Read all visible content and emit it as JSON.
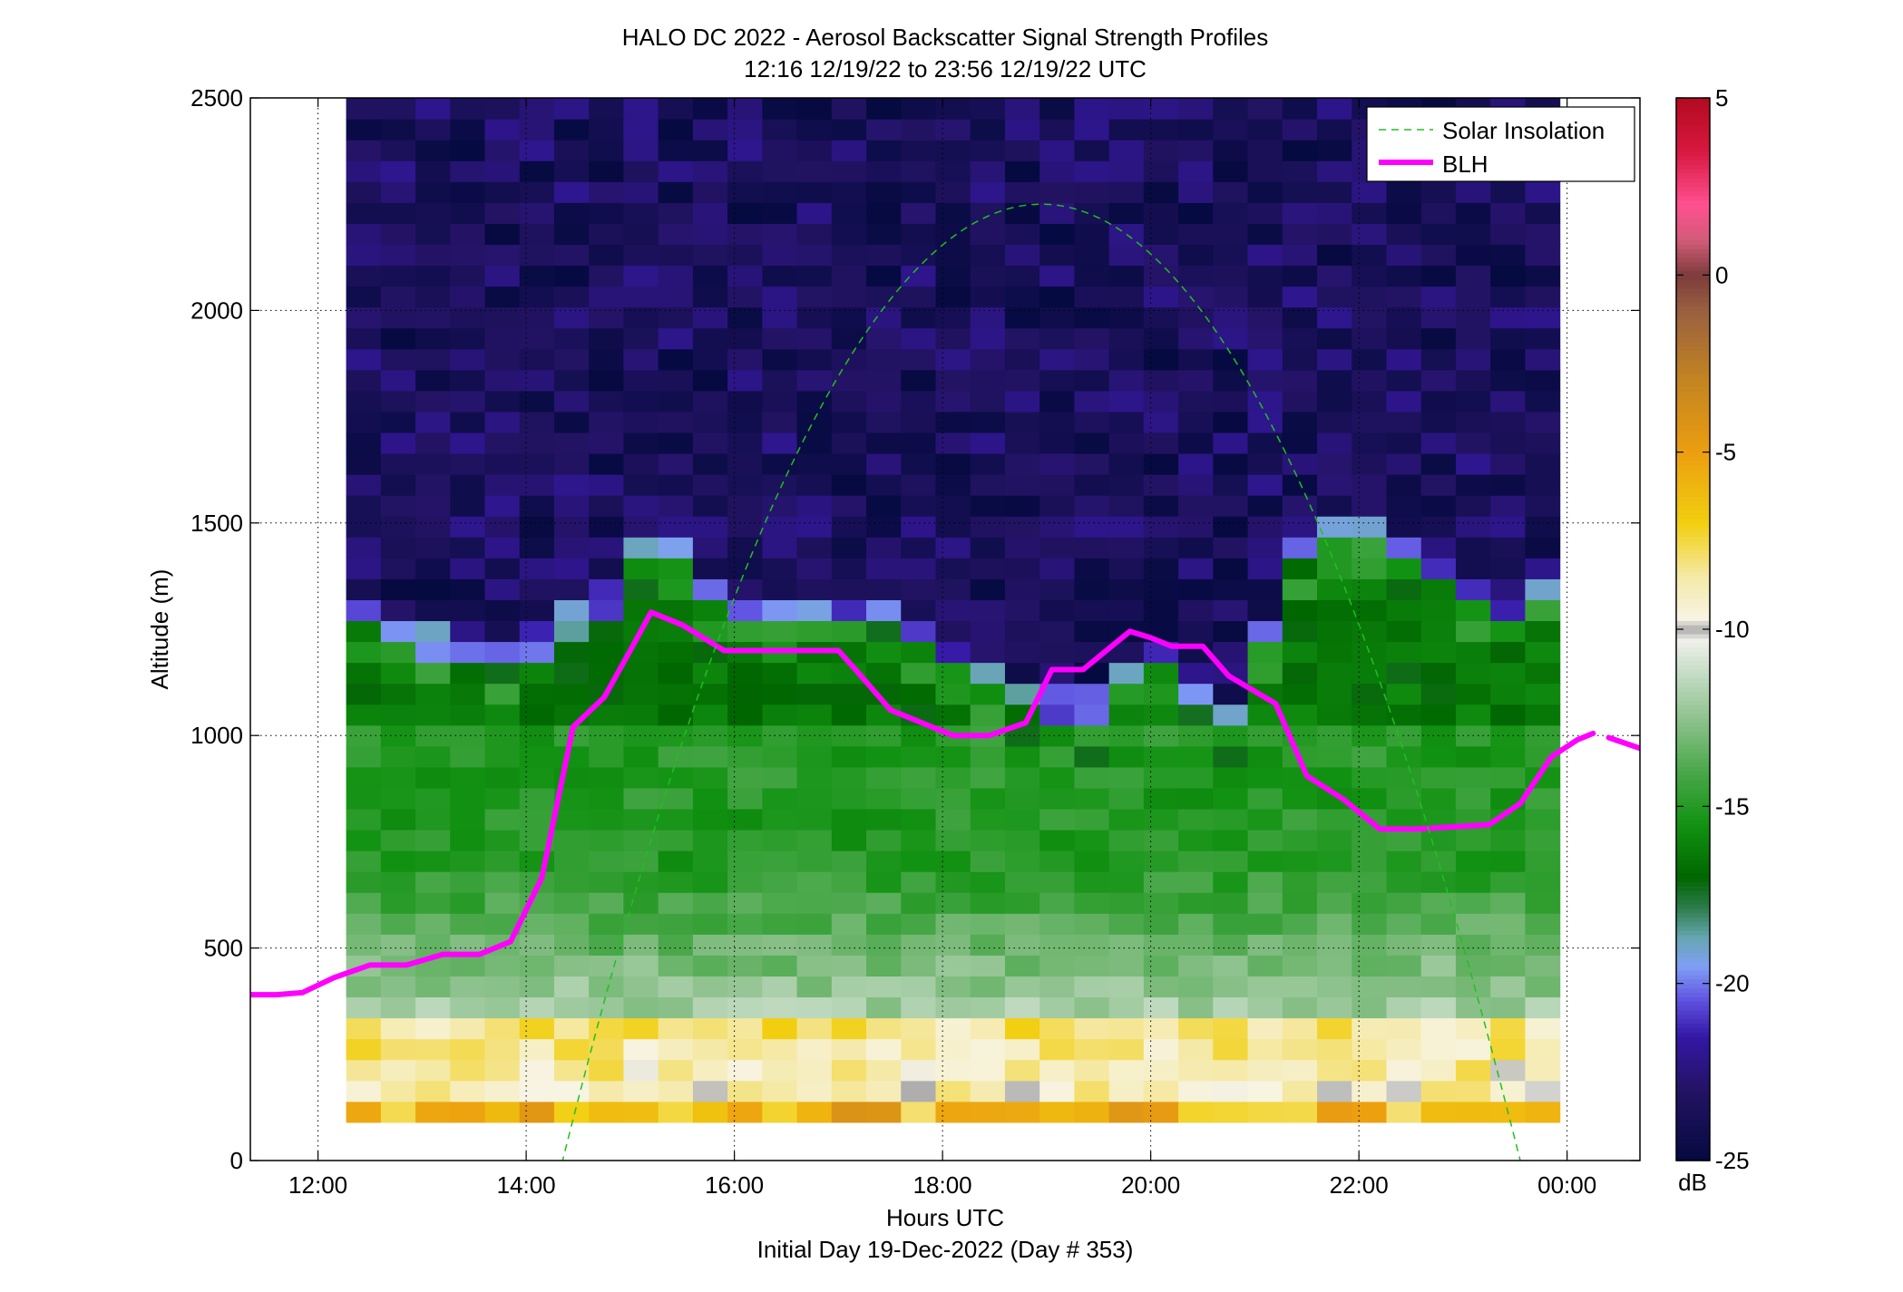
{
  "chart_data": [
    {
      "type": "heatmap",
      "title": "HALO DC 2022 - Aerosol Backscatter Signal Strength Profiles",
      "subtitle": "12:16 12/19/22 to 23:56 12/19/22  UTC",
      "xlabel": "Hours UTC",
      "xlabel2": "Initial Day 19-Dec-2022 (Day # 353)",
      "ylabel": "Altitude (m)",
      "xlim": [
        11.35,
        24.7
      ],
      "ylim": [
        0,
        2500
      ],
      "x_ticks": [
        12,
        14,
        16,
        18,
        20,
        22,
        24
      ],
      "x_tick_labels": [
        "12:00",
        "14:00",
        "16:00",
        "18:00",
        "20:00",
        "22:00",
        "00:00"
      ],
      "y_ticks": [
        0,
        500,
        1000,
        1500,
        2000,
        2500
      ],
      "y_tick_labels": [
        "0",
        "500",
        "1000",
        "1500",
        "2000",
        "2500"
      ],
      "grid": true,
      "legend_placement": "top-right",
      "heatmap": {
        "x_start": 12.27,
        "x_end": 23.93,
        "columns": 35,
        "y_start": 90,
        "y_end": 2500,
        "rows": 49,
        "value_unit": "dB",
        "approx_profile_dB": {
          "surface_90_150m": -6,
          "near_surface_150_350m": -9,
          "lower_BL_350_700m": -12,
          "mid_BL_700_1000m": -15,
          "upper_BL_near_top": -16.5,
          "BL_top_transition": -20,
          "free_troposphere": -23.5
        },
        "bl_top_m": [
          1270,
          1230,
          1190,
          1170,
          1170,
          1190,
          1240,
          1290,
          1400,
          1420,
          1330,
          1280,
          1280,
          1280,
          1280,
          1250,
          1230,
          1150,
          1100,
          1060,
          1040,
          1040,
          1120,
          1170,
          1080,
          1000,
          1200,
          1400,
          1450,
          1450,
          1400,
          1370,
          1310,
          1280,
          1310
        ]
      },
      "series": [
        {
          "name": "BLH",
          "color": "#ff00ff",
          "x": [
            11.35,
            11.6,
            11.85,
            12.15,
            12.5,
            12.85,
            13.2,
            13.55,
            13.85,
            14.15,
            14.45,
            14.75,
            15.0,
            15.2,
            15.5,
            15.9,
            16.3,
            16.7,
            17.0,
            17.2,
            17.5,
            17.8,
            18.1,
            18.45,
            18.8,
            19.05,
            19.35,
            19.6,
            19.8,
            20.0,
            20.2,
            20.5,
            20.75,
            21.2,
            21.5,
            21.85,
            22.2,
            22.55,
            22.9,
            23.25,
            23.55,
            23.85,
            24.1,
            24.25
          ],
          "y": [
            390,
            390,
            395,
            430,
            460,
            460,
            485,
            485,
            515,
            665,
            1020,
            1090,
            1200,
            1290,
            1260,
            1200,
            1200,
            1200,
            1200,
            1145,
            1060,
            1030,
            1000,
            1000,
            1030,
            1155,
            1155,
            1205,
            1245,
            1230,
            1210,
            1210,
            1140,
            1075,
            905,
            850,
            780,
            780,
            785,
            790,
            840,
            950,
            990,
            1005
          ]
        },
        {
          "name": "",
          "color": "#ff00ff",
          "x": [
            24.4,
            24.7
          ],
          "y": [
            995,
            970
          ]
        },
        {
          "name": "Solar Insolation",
          "color": "#20c020",
          "style": "dashed",
          "function": "parabola",
          "peak_x": 18.95,
          "peak_y": 2250,
          "zero_x": [
            14.35,
            23.55
          ]
        }
      ],
      "legend": [
        "Solar Insolation",
        "BLH"
      ]
    },
    {
      "type": "colorbar",
      "label": "dB",
      "range": [
        -25,
        5
      ],
      "ticks": [
        5,
        0,
        -5,
        -10,
        -15,
        -20,
        -25
      ],
      "tick_labels": [
        "5",
        "0",
        "-5",
        "-10",
        "-15",
        "-20",
        "-25"
      ],
      "colormap": [
        [
          -25,
          "#050a40"
        ],
        [
          -23,
          "#231363"
        ],
        [
          -21.5,
          "#3417a5"
        ],
        [
          -20.5,
          "#5f50e0"
        ],
        [
          -19.5,
          "#80a0f5"
        ],
        [
          -18.7,
          "#66a6b0"
        ],
        [
          -17.8,
          "#2a7a45"
        ],
        [
          -17,
          "#006600"
        ],
        [
          -15.5,
          "#129212"
        ],
        [
          -14,
          "#4aa84a"
        ],
        [
          -12.5,
          "#8fc28f"
        ],
        [
          -11,
          "#cfe1cf"
        ],
        [
          -10.3,
          "#f0f0ea"
        ],
        [
          -10,
          "#aaaaaa"
        ],
        [
          -9.7,
          "#f7f4e4"
        ],
        [
          -8.5,
          "#f5e9a6"
        ],
        [
          -7,
          "#f2cf10"
        ],
        [
          -5,
          "#ec9e10"
        ],
        [
          -3,
          "#c48520"
        ],
        [
          -1,
          "#9a6040"
        ],
        [
          0,
          "#7c3c3c"
        ],
        [
          1,
          "#d25c78"
        ],
        [
          2,
          "#ff5090"
        ],
        [
          3.5,
          "#d81840"
        ],
        [
          5,
          "#b30a20"
        ]
      ]
    }
  ]
}
